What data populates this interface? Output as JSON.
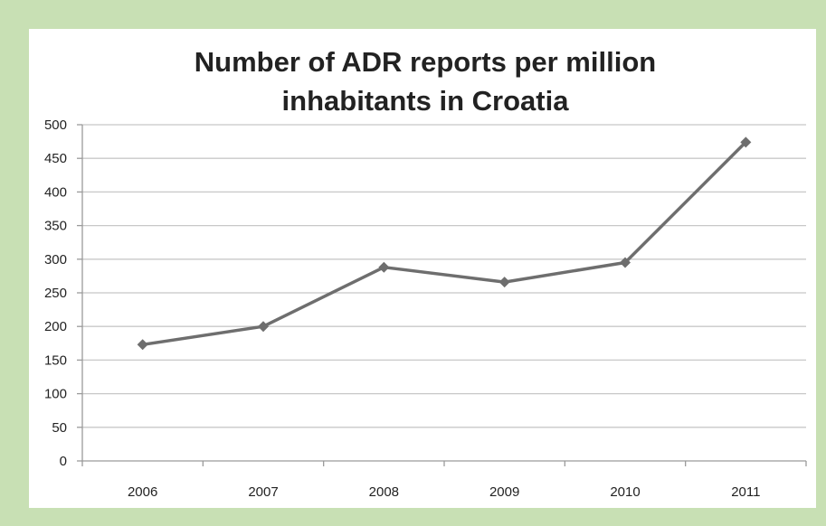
{
  "chart_data": {
    "type": "line",
    "title_lines": [
      "Number of ADR reports per million",
      "inhabitants in Croatia"
    ],
    "categories": [
      "2006",
      "2007",
      "2008",
      "2009",
      "2010",
      "2011"
    ],
    "series": [
      {
        "values": [
          173,
          200,
          288,
          266,
          295,
          474
        ]
      }
    ],
    "ylim": [
      0,
      500
    ],
    "yticks": [
      "0",
      "50",
      "100",
      "150",
      "200",
      "250",
      "300",
      "350",
      "400",
      "450",
      "500"
    ],
    "grid": true,
    "legend": "none",
    "colors": {
      "line": "#6e6e6e",
      "marker": "#6e6e6e",
      "grid": "#c8c8c8",
      "axis": "#9a9a9a",
      "frame": "#c8e0b4",
      "panel": "#ffffff"
    }
  }
}
